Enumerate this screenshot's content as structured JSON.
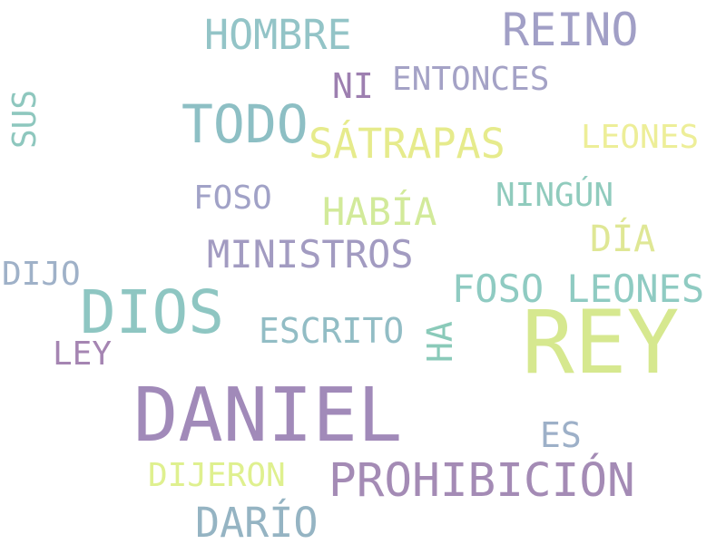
{
  "palette": {
    "yellow": "#dfe67f",
    "teal": "#8cc7c0",
    "blue_grey": "#96aec3",
    "lavender": "#9e9bc3",
    "purple": "#a18ab3",
    "green": "#c4e3a2",
    "pale_yellow": "#e7ec95"
  },
  "words": [
    {
      "text": "REY",
      "color": "#d6e88f"
    },
    {
      "text": "DANIEL",
      "color": "#a18ab9"
    },
    {
      "text": "DIOS",
      "color": "#8ec6c2"
    },
    {
      "text": "PROHIBICIÓN",
      "color": "#a48bb5"
    },
    {
      "text": "TODO",
      "color": "#8dbfc4"
    },
    {
      "text": "REINO",
      "color": "#a19fc6"
    },
    {
      "text": "HOMBRE",
      "color": "#93c4c7"
    },
    {
      "text": "SÁTRAPAS",
      "color": "#e6eb8c"
    },
    {
      "text": "MINISTROS",
      "color": "#a29bc1"
    },
    {
      "text": "FOSO LEONES",
      "color": "#8fcbc2"
    },
    {
      "text": "DARÍO",
      "color": "#95b4c3"
    },
    {
      "text": "HABÍA",
      "color": "#d2ea9a"
    },
    {
      "text": "ESCRITO",
      "color": "#92bdc5"
    },
    {
      "text": "ENTONCES",
      "color": "#a4a2c6"
    },
    {
      "text": "LEONES",
      "color": "#edee98"
    },
    {
      "text": "DÍA",
      "color": "#dfe795"
    },
    {
      "text": "NINGÚN",
      "color": "#90cbbd"
    },
    {
      "text": "DIJERON",
      "color": "#dff08f"
    },
    {
      "text": "FOSO",
      "color": "#a1a2c7"
    },
    {
      "text": "HA",
      "color": "#8acab9"
    },
    {
      "text": "LEY",
      "color": "#a585b2"
    },
    {
      "text": "DIJO",
      "color": "#9fb1c8"
    },
    {
      "text": "ES",
      "color": "#9db0c8"
    },
    {
      "text": "NI",
      "color": "#9d7fb0"
    },
    {
      "text": "SUS",
      "color": "#8ec7be"
    }
  ]
}
